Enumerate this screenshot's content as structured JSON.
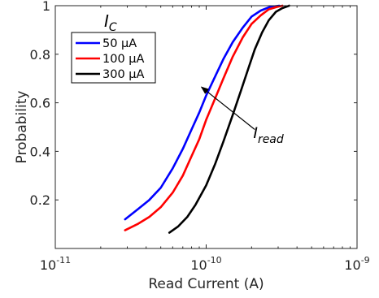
{
  "chart_data": {
    "type": "line",
    "xscale": "log",
    "xlim": [
      1e-11,
      1e-09
    ],
    "ylim": [
      0,
      1
    ],
    "xlabel": "Read Current (A)",
    "ylabel": "Probability",
    "x_ticks": [
      {
        "value": 1e-11,
        "base": "10",
        "exp": "-11"
      },
      {
        "value": 1e-10,
        "base": "10",
        "exp": "-10"
      },
      {
        "value": 1e-09,
        "base": "10",
        "exp": "-9"
      }
    ],
    "y_ticks": [
      {
        "value": 0.2,
        "label": "0.2"
      },
      {
        "value": 0.4,
        "label": "0.4"
      },
      {
        "value": 0.6,
        "label": "0.6"
      },
      {
        "value": 0.8,
        "label": "0.8"
      },
      {
        "value": 1.0,
        "label": "1"
      }
    ],
    "legend": {
      "title_main": "I",
      "title_sub": "C",
      "placement": "top-left"
    },
    "series": [
      {
        "name": "50 μA",
        "color": "#0000ff",
        "x": [
          2.9e-11,
          3.5e-11,
          4.2e-11,
          5e-11,
          6e-11,
          7e-11,
          8e-11,
          9e-11,
          1e-10,
          1.15e-10,
          1.3e-10,
          1.5e-10,
          1.75e-10,
          2e-10,
          2.3e-10,
          2.65e-10,
          3.05e-10
        ],
        "y": [
          0.12,
          0.16,
          0.2,
          0.25,
          0.33,
          0.41,
          0.49,
          0.56,
          0.63,
          0.71,
          0.78,
          0.85,
          0.91,
          0.955,
          0.98,
          0.995,
          1.0
        ]
      },
      {
        "name": "100 μA",
        "color": "#ff0000",
        "x": [
          2.9e-11,
          3.5e-11,
          4.2e-11,
          5e-11,
          6e-11,
          7e-11,
          8e-11,
          9e-11,
          1e-10,
          1.15e-10,
          1.3e-10,
          1.5e-10,
          1.75e-10,
          2e-10,
          2.3e-10,
          2.6e-10,
          2.95e-10,
          3.2e-10
        ],
        "y": [
          0.075,
          0.1,
          0.13,
          0.17,
          0.23,
          0.3,
          0.38,
          0.45,
          0.53,
          0.62,
          0.7,
          0.79,
          0.87,
          0.925,
          0.96,
          0.985,
          0.995,
          1.0
        ]
      },
      {
        "name": "300 μA",
        "color": "#000000",
        "x": [
          5.7e-11,
          6.5e-11,
          7.5e-11,
          8.5e-11,
          1e-10,
          1.15e-10,
          1.3e-10,
          1.5e-10,
          1.7e-10,
          1.9e-10,
          2.1e-10,
          2.35e-10,
          2.6e-10,
          2.9e-10,
          3.2e-10,
          3.55e-10
        ],
        "y": [
          0.065,
          0.09,
          0.13,
          0.18,
          0.26,
          0.35,
          0.44,
          0.55,
          0.65,
          0.74,
          0.82,
          0.89,
          0.94,
          0.975,
          0.99,
          1.0
        ]
      }
    ],
    "annotations": [
      {
        "type": "arrow",
        "from": [
          2.1e-10,
          0.49
        ],
        "to": [
          9.3e-11,
          0.665
        ]
      },
      {
        "type": "text",
        "main": "I",
        "sub": "read",
        "x": 2.05e-10,
        "y": 0.455
      }
    ]
  }
}
